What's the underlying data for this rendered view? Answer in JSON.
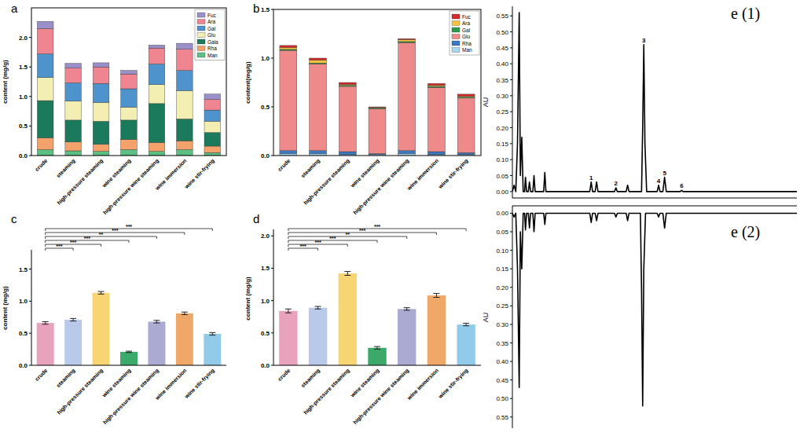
{
  "chart_data": [
    {
      "type": "bar",
      "title": "a",
      "ylabel": "content (mg/g)",
      "stacked": true,
      "legend": "upper-right",
      "grid": false,
      "categories": [
        "crude",
        "steaming",
        "high-pressure steaming",
        "wine steaming",
        "high-pressure wine steaming",
        "wine immersion",
        "wine stir-frying"
      ],
      "series": [
        {
          "name": "Man",
          "color": "#5cbf83",
          "values": [
            0.1,
            0.08,
            0.07,
            0.1,
            0.07,
            0.1,
            0.05
          ]
        },
        {
          "name": "Rha",
          "color": "#f2a26a",
          "values": [
            0.2,
            0.15,
            0.12,
            0.17,
            0.15,
            0.15,
            0.11
          ]
        },
        {
          "name": "Gala",
          "color": "#1b7a5c",
          "values": [
            0.63,
            0.37,
            0.39,
            0.33,
            0.66,
            0.37,
            0.23
          ]
        },
        {
          "name": "Glu",
          "color": "#f3efb3",
          "values": [
            0.39,
            0.32,
            0.32,
            0.22,
            0.32,
            0.48,
            0.19
          ]
        },
        {
          "name": "Gal",
          "color": "#4f93cc",
          "values": [
            0.4,
            0.31,
            0.32,
            0.31,
            0.35,
            0.34,
            0.19
          ]
        },
        {
          "name": "Ara",
          "color": "#ef8591",
          "values": [
            0.43,
            0.25,
            0.28,
            0.25,
            0.27,
            0.36,
            0.18
          ]
        },
        {
          "name": "Fuc",
          "color": "#9b8fca",
          "values": [
            0.12,
            0.08,
            0.07,
            0.06,
            0.05,
            0.1,
            0.09
          ]
        }
      ],
      "ylim": [
        0,
        2.5
      ],
      "yticks": [
        {
          "value": 0,
          "label": "0.0"
        },
        0.5,
        {
          "value": 1,
          "label": "1.0"
        },
        1.5,
        {
          "value": 2,
          "label": "2.0"
        }
      ]
    },
    {
      "type": "bar",
      "title": "b",
      "ylabel": "content(mg/g)",
      "stacked": true,
      "legend": "upper-right",
      "grid": false,
      "categories": [
        "crude",
        "steaming",
        "high-pressure steaming",
        "wine steaming",
        "high-pressure wine steaming",
        "wine immersion",
        "wine stir-frying"
      ],
      "series": [
        {
          "name": "Man",
          "color": "#a8d8f0",
          "values": [
            0.02,
            0.02,
            0.01,
            0.01,
            0.02,
            0.01,
            0.01
          ]
        },
        {
          "name": "Rha",
          "color": "#3a78c2",
          "values": [
            0.03,
            0.03,
            0.03,
            0.01,
            0.03,
            0.03,
            0.02
          ]
        },
        {
          "name": "Glu",
          "color": "#ee8a8a",
          "values": [
            1.03,
            0.89,
            0.67,
            0.46,
            1.11,
            0.66,
            0.56
          ]
        },
        {
          "name": "Gal",
          "color": "#2a9a4a",
          "values": [
            0.01,
            0.01,
            0.01,
            0.01,
            0.01,
            0.01,
            0.01
          ]
        },
        {
          "name": "Ara",
          "color": "#f5c242",
          "values": [
            0.02,
            0.03,
            0.01,
            0.005,
            0.02,
            0.01,
            0.01
          ]
        },
        {
          "name": "Fuc",
          "color": "#d62a2a",
          "values": [
            0.02,
            0.02,
            0.02,
            0.005,
            0.01,
            0.02,
            0.02
          ]
        }
      ],
      "ylim": [
        0,
        1.5
      ],
      "yticks": [
        {
          "value": 0,
          "label": "0.0"
        },
        0.5,
        {
          "value": 1,
          "label": "1.0"
        },
        1.5
      ]
    },
    {
      "type": "bar",
      "title": "c",
      "ylabel": "content (mg/g)",
      "grid": false,
      "categories": [
        "crude",
        "steaming",
        "high-pressure steaming",
        "wine steaming",
        "high-pressure wine steaming",
        "wine immersion",
        "wine stir-frying"
      ],
      "values": [
        0.66,
        0.71,
        1.13,
        0.21,
        0.68,
        0.81,
        0.49
      ],
      "errors": [
        0.02,
        0.02,
        0.02,
        0.01,
        0.02,
        0.02,
        0.02
      ],
      "colors": [
        "#e8a2bb",
        "#b9c9ea",
        "#f7d572",
        "#3aa96a",
        "#aaaad2",
        "#f0a868",
        "#92cbea"
      ],
      "ylim": [
        0,
        1.8
      ],
      "yticks": [
        {
          "value": 0,
          "label": "0.0"
        },
        0.5,
        {
          "value": 1,
          "label": "1.0"
        },
        1.5
      ],
      "annotations": [
        {
          "from": "crude",
          "to": "steaming",
          "label": "***"
        },
        {
          "from": "crude",
          "to": "high-pressure steaming",
          "label": "***"
        },
        {
          "from": "crude",
          "to": "wine steaming",
          "label": "***"
        },
        {
          "from": "crude",
          "to": "high-pressure wine steaming",
          "label": "**"
        },
        {
          "from": "crude",
          "to": "wine immersion",
          "label": "***"
        },
        {
          "from": "crude",
          "to": "wine stir-frying",
          "label": "***"
        }
      ]
    },
    {
      "type": "bar",
      "title": "d",
      "ylabel": "content (mg/g)",
      "grid": false,
      "categories": [
        "crude",
        "steaming",
        "high-pressure steaming",
        "wine steaming",
        "high-pressure wine steaming",
        "wine immersion",
        "wine stir-frying"
      ],
      "values": [
        0.84,
        0.89,
        1.42,
        0.27,
        0.87,
        1.08,
        0.63
      ],
      "errors": [
        0.03,
        0.02,
        0.03,
        0.02,
        0.02,
        0.03,
        0.02
      ],
      "colors": [
        "#e8a2bb",
        "#b9c9ea",
        "#f7d572",
        "#3aa96a",
        "#aaaad2",
        "#f0a868",
        "#92cbea"
      ],
      "ylim": [
        0,
        2.1
      ],
      "yticks": [
        {
          "value": 0,
          "label": "0.0"
        },
        0.5,
        {
          "value": 1,
          "label": "1.0"
        },
        1.5,
        {
          "value": 2,
          "label": "2.0"
        }
      ],
      "annotations": [
        {
          "from": "crude",
          "to": "steaming",
          "label": "***"
        },
        {
          "from": "crude",
          "to": "high-pressure steaming",
          "label": "***"
        },
        {
          "from": "crude",
          "to": "wine steaming",
          "label": "***"
        },
        {
          "from": "crude",
          "to": "high-pressure wine steaming",
          "label": "**"
        },
        {
          "from": "crude",
          "to": "wine immersion",
          "label": "***"
        },
        {
          "from": "crude",
          "to": "wine stir-frying",
          "label": "***"
        }
      ]
    },
    {
      "type": "line",
      "title": "e (1)",
      "ylabel": "AU",
      "color": "#000000",
      "tick_labels": "y",
      "grid": false,
      "x": [
        0,
        0.6,
        1.2,
        1.8,
        2.4,
        2.8,
        3.3,
        3.8,
        4.3,
        4.6,
        5.0,
        5.6,
        6.0,
        6.4,
        7.2,
        7.6,
        8.0,
        11.0,
        11.4,
        11.8,
        27.2,
        27.7,
        28.2,
        29.1,
        29.6,
        30.1,
        35.9,
        36.4,
        36.9,
        40.0,
        40.5,
        41.0,
        45.4,
        45.8,
        46.2,
        46.6,
        47.2,
        50.9,
        51.4,
        51.9,
        52.9,
        53.5,
        54.1,
        59.0,
        59.5,
        60.0,
        100
      ],
      "values": [
        0,
        0.02,
        0,
        0.15,
        0.56,
        0.05,
        0.17,
        0,
        0,
        0.045,
        0,
        0,
        0.03,
        0,
        0,
        0.05,
        0,
        0,
        0.06,
        0,
        0,
        0.03,
        0,
        0,
        0.03,
        0,
        0,
        0.012,
        0,
        0,
        0.02,
        0,
        0,
        0.2,
        0.46,
        0.15,
        0,
        0,
        0.02,
        0,
        0,
        0.045,
        0,
        0,
        0.004,
        0,
        0
      ],
      "xlim": [
        0,
        100
      ],
      "xticks": [],
      "ylim": [
        -0.02,
        0.58
      ],
      "yticks": [
        {
          "value": 0,
          "label": "0.00"
        },
        0.05,
        {
          "value": 0.1,
          "label": "0.10"
        },
        0.15,
        {
          "value": 0.2,
          "label": "0.20"
        },
        0.25,
        {
          "value": 0.3,
          "label": "0.30"
        },
        0.35,
        {
          "value": 0.4,
          "label": "0.40"
        },
        0.45,
        {
          "value": 0.5,
          "label": "0.50"
        },
        0.55
      ],
      "annotations": [
        {
          "x": 27.7,
          "y": 0.03,
          "label": "1"
        },
        {
          "x": 36.4,
          "y": 0.012,
          "label": "2"
        },
        {
          "x": 46.2,
          "y": 0.46,
          "label": "3"
        },
        {
          "x": 51.4,
          "y": 0.02,
          "label": "4"
        },
        {
          "x": 53.5,
          "y": 0.045,
          "label": "5"
        },
        {
          "x": 59.5,
          "y": 0.004,
          "label": "6"
        }
      ]
    },
    {
      "type": "line",
      "title": "e (2)",
      "ylabel": "AU",
      "color": "#000000",
      "tick_labels": "y",
      "grid": false,
      "x": [
        0,
        0.6,
        1.2,
        1.8,
        2.4,
        2.8,
        3.3,
        3.8,
        4.3,
        4.6,
        5.0,
        5.6,
        6.0,
        6.4,
        7.2,
        7.6,
        8.0,
        11.0,
        11.4,
        11.8,
        27.2,
        27.7,
        28.2,
        29.1,
        29.6,
        30.1,
        35.9,
        36.4,
        36.9,
        40.0,
        40.5,
        41.0,
        45.0,
        45.4,
        45.8,
        46.2,
        46.8,
        50.9,
        51.4,
        51.9,
        52.9,
        53.5,
        54.1,
        100
      ],
      "values": [
        0,
        0.01,
        0,
        0.15,
        0.47,
        0.05,
        0.15,
        0,
        0,
        0.045,
        0,
        0,
        0.04,
        0,
        0,
        0.05,
        0,
        0,
        0.03,
        0,
        0,
        0.025,
        0,
        0,
        0.02,
        0,
        0,
        0.01,
        0,
        0,
        0.02,
        0,
        0,
        0.2,
        0.52,
        0.15,
        0,
        0,
        0.01,
        0,
        0,
        0.04,
        0,
        0
      ],
      "xlim": [
        0,
        100
      ],
      "xticks": [],
      "ylim": [
        0.58,
        -0.02
      ],
      "yticks": [
        {
          "value": 0,
          "label": "0.00"
        },
        0.05,
        {
          "value": 0.1,
          "label": "0.10"
        },
        0.15,
        {
          "value": 0.2,
          "label": "0.20"
        },
        0.25,
        {
          "value": 0.3,
          "label": "0.30"
        },
        0.35,
        {
          "value": 0.4,
          "label": "0.40"
        },
        0.45,
        {
          "value": 0.5,
          "label": "0.50"
        },
        0.55
      ]
    }
  ]
}
